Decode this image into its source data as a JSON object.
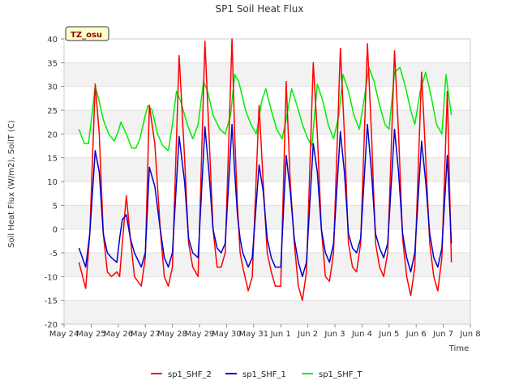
{
  "chart_data": {
    "type": "line",
    "title": "SP1 Soil Heat Flux",
    "xlabel": "Time",
    "ylabel": "Soil Heat Flux (W/m2), SoilT (C)",
    "badge": "TZ_osu",
    "xlim": [
      0,
      15
    ],
    "ylim": [
      -20,
      40
    ],
    "x_ticks": [
      {
        "pos": 0,
        "label": "May 24"
      },
      {
        "pos": 1,
        "label": "May 25"
      },
      {
        "pos": 2,
        "label": "May 26"
      },
      {
        "pos": 3,
        "label": "May 27"
      },
      {
        "pos": 4,
        "label": "May 28"
      },
      {
        "pos": 5,
        "label": "May 29"
      },
      {
        "pos": 6,
        "label": "May 30"
      },
      {
        "pos": 7,
        "label": "May 31"
      },
      {
        "pos": 8,
        "label": "Jun 1"
      },
      {
        "pos": 9,
        "label": "Jun 2"
      },
      {
        "pos": 10,
        "label": "Jun 3"
      },
      {
        "pos": 11,
        "label": "Jun 4"
      },
      {
        "pos": 12,
        "label": "Jun 5"
      },
      {
        "pos": 13,
        "label": "Jun 6"
      },
      {
        "pos": 14,
        "label": "Jun 7"
      },
      {
        "pos": 15,
        "label": "Jun 8"
      }
    ],
    "y_ticks": [
      -20,
      -15,
      -10,
      -5,
      0,
      5,
      10,
      15,
      20,
      25,
      30,
      35,
      40
    ],
    "grid": true,
    "legend_position": "bottom",
    "series": [
      {
        "name": "sp1_SHF_2",
        "color": "#ff0000",
        "x": [
          0.55,
          0.8,
          0.95,
          1.15,
          1.3,
          1.45,
          1.6,
          1.75,
          1.95,
          2.05,
          2.15,
          2.3,
          2.45,
          2.6,
          2.85,
          3.0,
          3.15,
          3.35,
          3.55,
          3.7,
          3.85,
          4.0,
          4.25,
          4.45,
          4.6,
          4.75,
          4.95,
          5.2,
          5.35,
          5.5,
          5.65,
          5.8,
          5.95,
          6.2,
          6.3,
          6.4,
          6.5,
          6.6,
          6.8,
          6.95,
          7.2,
          7.35,
          7.5,
          7.65,
          7.8,
          8.0,
          8.2,
          8.35,
          8.5,
          8.65,
          8.8,
          8.95,
          9.2,
          9.35,
          9.5,
          9.65,
          9.8,
          9.95,
          10.2,
          10.35,
          10.5,
          10.65,
          10.8,
          10.95,
          11.2,
          11.35,
          11.5,
          11.65,
          11.8,
          11.95,
          12.2,
          12.35,
          12.5,
          12.65,
          12.8,
          12.95,
          13.2,
          13.35,
          13.5,
          13.65,
          13.8,
          13.95,
          14.15,
          14.3
        ],
        "y": [
          -7,
          -12.5,
          -1,
          30.5,
          20,
          -1,
          -9,
          -10,
          -9,
          -10,
          -3,
          7,
          -2,
          -10,
          -12,
          -6,
          26,
          18,
          0,
          -10,
          -12,
          -8,
          36.5,
          15,
          -3,
          -8,
          -10,
          39.5,
          20,
          0,
          -8,
          -8,
          -5,
          40,
          20,
          5,
          -5,
          -8,
          -13,
          -10,
          26,
          10,
          -5,
          -9,
          -12,
          -12,
          31,
          10,
          -3,
          -12,
          -15,
          -9,
          35,
          20,
          0,
          -10,
          -11,
          -5,
          38,
          20,
          -3,
          -8,
          -9,
          -3,
          39,
          20,
          -3,
          -8,
          -10,
          -5,
          37.5,
          20,
          -2,
          -10,
          -14,
          -8,
          33,
          15,
          -3,
          -10,
          -13,
          -6,
          29,
          -7
        ]
      },
      {
        "name": "sp1_SHF_1",
        "color": "#0000cc",
        "x": [
          0.55,
          0.8,
          0.95,
          1.15,
          1.3,
          1.45,
          1.6,
          1.75,
          1.95,
          2.05,
          2.15,
          2.3,
          2.45,
          2.6,
          2.85,
          3.0,
          3.15,
          3.35,
          3.55,
          3.7,
          3.85,
          4.0,
          4.25,
          4.45,
          4.6,
          4.75,
          4.95,
          5.2,
          5.35,
          5.5,
          5.65,
          5.8,
          5.95,
          6.2,
          6.3,
          6.4,
          6.5,
          6.6,
          6.8,
          6.95,
          7.2,
          7.35,
          7.5,
          7.65,
          7.8,
          8.0,
          8.2,
          8.35,
          8.5,
          8.65,
          8.8,
          8.95,
          9.2,
          9.35,
          9.5,
          9.65,
          9.8,
          9.95,
          10.2,
          10.35,
          10.5,
          10.65,
          10.8,
          10.95,
          11.2,
          11.35,
          11.5,
          11.65,
          11.8,
          11.95,
          12.2,
          12.35,
          12.5,
          12.65,
          12.8,
          12.95,
          13.2,
          13.35,
          13.5,
          13.65,
          13.8,
          13.95,
          14.15,
          14.3
        ],
        "y": [
          -4,
          -8,
          -1,
          16.5,
          12,
          -1,
          -5,
          -6,
          -7,
          -2,
          2,
          3,
          -2,
          -5,
          -8,
          -5,
          13,
          9,
          0,
          -6,
          -8,
          -5,
          19.5,
          10,
          -2,
          -5,
          -6,
          21.5,
          12,
          0,
          -4,
          -5,
          -3,
          22,
          12,
          3,
          -2,
          -5,
          -8,
          -6,
          13.5,
          8,
          -2,
          -6,
          -8,
          -8,
          15.5,
          8,
          -2,
          -7,
          -10,
          -7,
          18,
          12,
          0,
          -5,
          -7,
          -3,
          20.5,
          12,
          -1,
          -4,
          -5,
          -2,
          22,
          12,
          -1,
          -4,
          -6,
          -3,
          21,
          12,
          -1,
          -6,
          -9,
          -5,
          18.5,
          10,
          -1,
          -6,
          -8,
          -4,
          15.5,
          -3
        ]
      },
      {
        "name": "sp1_SHF_T",
        "color": "#00ee00",
        "x": [
          0.55,
          0.75,
          0.9,
          1.05,
          1.15,
          1.25,
          1.45,
          1.65,
          1.85,
          2.0,
          2.1,
          2.3,
          2.5,
          2.65,
          2.8,
          3.0,
          3.1,
          3.25,
          3.45,
          3.65,
          3.85,
          4.0,
          4.15,
          4.3,
          4.55,
          4.75,
          4.95,
          5.15,
          5.3,
          5.5,
          5.75,
          5.95,
          6.15,
          6.3,
          6.45,
          6.7,
          6.9,
          7.1,
          7.3,
          7.45,
          7.65,
          7.85,
          8.05,
          8.2,
          8.4,
          8.6,
          8.8,
          9.0,
          9.15,
          9.35,
          9.55,
          9.75,
          9.95,
          10.15,
          10.3,
          10.5,
          10.7,
          10.9,
          11.1,
          11.25,
          11.45,
          11.65,
          11.85,
          12.0,
          12.2,
          12.4,
          12.6,
          12.8,
          12.95,
          13.15,
          13.35,
          13.55,
          13.75,
          13.95,
          14.1,
          14.3
        ],
        "y": [
          21,
          18,
          18,
          25,
          30,
          28,
          23,
          20,
          18.5,
          20.5,
          22.5,
          20,
          17,
          17,
          19,
          24,
          26,
          25,
          20,
          17.5,
          16.5,
          22,
          29,
          27,
          22,
          19,
          22,
          31,
          29,
          24,
          21,
          20,
          24,
          32.5,
          31,
          25,
          22,
          20,
          27,
          29.5,
          25,
          21,
          19,
          23,
          29.5,
          26,
          22,
          19,
          17.5,
          30.5,
          27,
          22,
          19,
          24,
          32.5,
          29,
          24,
          21,
          28,
          34,
          31,
          26,
          22,
          21,
          33,
          34,
          30,
          25,
          22,
          29,
          33,
          28,
          22,
          20,
          32.5,
          24
        ]
      }
    ]
  }
}
